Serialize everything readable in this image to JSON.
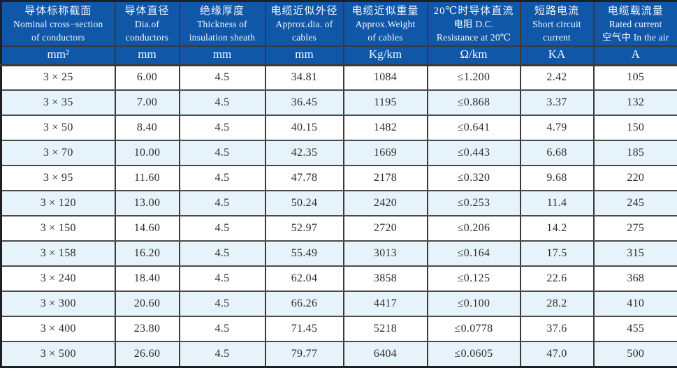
{
  "table": {
    "columns": [
      {
        "lines": [
          "导体标称截面",
          "Nominal cross−section",
          "of conductors"
        ],
        "unit": "mm²"
      },
      {
        "lines": [
          "导体直径",
          "Dia.of",
          "conductors"
        ],
        "unit": "mm"
      },
      {
        "lines": [
          "绝缘厚度",
          "Thickness of",
          "insulation sheath"
        ],
        "unit": "mm"
      },
      {
        "lines": [
          "电缆近似外径",
          "Approx.dia. of",
          "cables"
        ],
        "unit": "mm"
      },
      {
        "lines": [
          "电缆近似重量",
          "Approx.Weight",
          "of cables"
        ],
        "unit": "Kg/km"
      },
      {
        "lines": [
          "20℃时导体直流",
          "电阻 D.C.",
          "Resistance at 20℃"
        ],
        "unit": "Ω/km"
      },
      {
        "lines": [
          "短路电流",
          "Short circuit",
          "current"
        ],
        "unit": "KA"
      },
      {
        "lines": [
          "电缆载流量",
          "Rated current",
          "空气中 In the air"
        ],
        "unit": "A"
      }
    ],
    "rows": [
      [
        "3 × 25",
        "6.00",
        "4.5",
        "34.81",
        "1084",
        "≤1.200",
        "2.42",
        "105"
      ],
      [
        "3 × 35",
        "7.00",
        "4.5",
        "36.45",
        "1195",
        "≤0.868",
        "3.37",
        "132"
      ],
      [
        "3 × 50",
        "8.40",
        "4.5",
        "40.15",
        "1482",
        "≤0.641",
        "4.79",
        "150"
      ],
      [
        "3 × 70",
        "10.00",
        "4.5",
        "42.35",
        "1669",
        "≤0.443",
        "6.68",
        "185"
      ],
      [
        "3 × 95",
        "11.60",
        "4.5",
        "47.78",
        "2178",
        "≤0.320",
        "9.68",
        "220"
      ],
      [
        "3 × 120",
        "13.00",
        "4.5",
        "50.24",
        "2420",
        "≤0.253",
        "11.4",
        "245"
      ],
      [
        "3 × 150",
        "14.60",
        "4.5",
        "52.97",
        "2720",
        "≤0.206",
        "14.2",
        "275"
      ],
      [
        "3 × 158",
        "16.20",
        "4.5",
        "55.49",
        "3013",
        "≤0.164",
        "17.5",
        "315"
      ],
      [
        "3 × 240",
        "18.40",
        "4.5",
        "62.04",
        "3858",
        "≤0.125",
        "22.6",
        "368"
      ],
      [
        "3 × 300",
        "20.60",
        "4.5",
        "66.26",
        "4417",
        "≤0.100",
        "28.2",
        "410"
      ],
      [
        "3 × 400",
        "23.80",
        "4.5",
        "71.45",
        "5218",
        "≤0.0778",
        "37.6",
        "455"
      ],
      [
        "3 × 500",
        "26.60",
        "4.5",
        "79.77",
        "6404",
        "≤0.0605",
        "47.0",
        "500"
      ]
    ]
  },
  "colors": {
    "header_bg": "#1157A8",
    "header_text": "#F2F7FF",
    "row_bg": "#FFFFFF",
    "row_alt_bg": "#E7F3FB",
    "data_text": "#2D2D2D",
    "border_outer": "#1F1F1F",
    "border_inner": "#3A3A3A",
    "border_row": "#4B4B4B"
  }
}
